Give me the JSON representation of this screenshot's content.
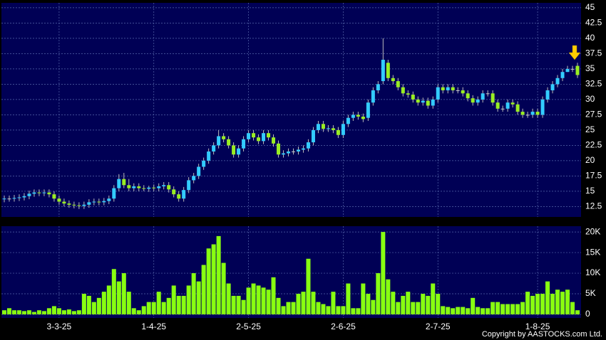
{
  "chart_data": {
    "type": "candlestick",
    "categories": [
      null,
      null,
      null,
      null,
      null,
      null,
      null,
      null,
      null,
      null,
      null,
      "3-3-25",
      null,
      null,
      null,
      null,
      null,
      null,
      null,
      null,
      null,
      null,
      null,
      null,
      null,
      null,
      null,
      null,
      null,
      null,
      "1-4-25",
      null,
      null,
      null,
      null,
      null,
      null,
      null,
      null,
      null,
      null,
      null,
      null,
      null,
      null,
      null,
      null,
      null,
      null,
      "2-5-25",
      null,
      null,
      null,
      null,
      null,
      null,
      null,
      null,
      null,
      null,
      null,
      null,
      null,
      null,
      null,
      null,
      null,
      null,
      "2-6-25",
      null,
      null,
      null,
      null,
      null,
      null,
      null,
      null,
      null,
      null,
      null,
      null,
      null,
      null,
      null,
      null,
      null,
      null,
      "2-7-25",
      null,
      null,
      null,
      null,
      null,
      null,
      null,
      null,
      null,
      null,
      null,
      null,
      null,
      null,
      null,
      null,
      null,
      null,
      null,
      "1-8-25",
      null,
      null,
      null,
      null,
      null,
      null,
      null,
      null
    ],
    "open": [
      13.7,
      13.8,
      13.8,
      13.9,
      14,
      14.2,
      14.6,
      14.8,
      14.7,
      14.8,
      14.5,
      13.8,
      13.3,
      13,
      12.8,
      12.7,
      12.6,
      12.8,
      13.2,
      13.3,
      13.2,
      13.4,
      13.8,
      15.5,
      17,
      16,
      15.5,
      15.8,
      15.5,
      15.4,
      15.6,
      15.5,
      15.8,
      16,
      15.3,
      14.5,
      13.8,
      15.2,
      16.8,
      17.5,
      19,
      20,
      21.5,
      22.5,
      24,
      23.5,
      22.5,
      21,
      22,
      23.5,
      24.5,
      23.8,
      23.2,
      24.5,
      23.8,
      22.8,
      21,
      21.2,
      21.5,
      21.5,
      21.8,
      22,
      23,
      25,
      26,
      25.2,
      25.3,
      25,
      24.2,
      26,
      27,
      27.5,
      27.2,
      27,
      29.5,
      31.5,
      33,
      36,
      33.5,
      33,
      32,
      31,
      30.8,
      30,
      29.5,
      29.8,
      29,
      30,
      32,
      31.5,
      32,
      31.5,
      31.5,
      31,
      30.2,
      29.5,
      30,
      31,
      31,
      29.5,
      28.5,
      28.5,
      29.5,
      29.2,
      28,
      27.5,
      27.5,
      28,
      27.5,
      30,
      31.5,
      32.5,
      33.5,
      34.5,
      35,
      35.5
    ],
    "high": [
      14.3,
      14.3,
      14.4,
      14.5,
      14.7,
      15.1,
      15.3,
      15.3,
      15.3,
      15.3,
      15,
      14.3,
      13.8,
      13.5,
      13.3,
      13.2,
      13.3,
      13.7,
      13.8,
      13.8,
      13.9,
      14.3,
      16,
      17.8,
      18,
      17,
      16.3,
      16.3,
      16,
      15.9,
      16.1,
      16.3,
      16.5,
      16.5,
      15.8,
      15,
      15.7,
      17.3,
      18,
      19.5,
      20.5,
      22,
      23,
      25,
      24.5,
      24,
      23,
      22.5,
      24,
      25,
      25,
      24.3,
      25,
      25,
      24.3,
      23.3,
      21.7,
      22,
      22,
      22.3,
      22.5,
      23.5,
      25.5,
      26.5,
      26.5,
      25.8,
      25.8,
      25.5,
      26.5,
      27.5,
      28,
      28,
      27.7,
      30,
      32,
      33,
      40,
      36.5,
      34,
      33.5,
      32.5,
      31.5,
      31.3,
      30.5,
      30.3,
      30.3,
      30.5,
      32.5,
      32.5,
      32.5,
      32.5,
      32,
      32,
      31.5,
      30.7,
      30.5,
      31.5,
      31.5,
      31.5,
      30,
      29,
      30,
      30,
      29.7,
      28.5,
      28,
      28.5,
      28.5,
      30.5,
      32,
      33,
      34,
      35,
      35.5,
      35.5,
      36
    ],
    "low": [
      13.2,
      13.3,
      13.3,
      13.4,
      13.5,
      13.7,
      14.1,
      14.2,
      14.2,
      14,
      13.3,
      12.8,
      12.5,
      12.3,
      12.2,
      12.1,
      12.1,
      12.3,
      12.7,
      12.7,
      12.7,
      12.9,
      13.3,
      15,
      15.5,
      15,
      15,
      15,
      15,
      14.9,
      15,
      15,
      15.3,
      14.8,
      14,
      13.3,
      13.3,
      14.7,
      16.3,
      17,
      18.5,
      19.5,
      21,
      22,
      23,
      22,
      20.5,
      20.5,
      21.5,
      23,
      23.3,
      22.7,
      22.7,
      23.3,
      22.3,
      20.5,
      20.5,
      20.7,
      21,
      21,
      21.3,
      21.5,
      22.5,
      24.5,
      24.7,
      24.7,
      24.5,
      23.7,
      23.7,
      25.5,
      26.5,
      26.7,
      26.3,
      26.5,
      29,
      31,
      32.5,
      33,
      32.5,
      31.5,
      30.5,
      30.3,
      29.5,
      29,
      29,
      28.5,
      28.5,
      29.5,
      31,
      31,
      31,
      31,
      30.5,
      29.7,
      29,
      29,
      29.5,
      30.5,
      29,
      28,
      28,
      28,
      28.7,
      27.5,
      27,
      27,
      27,
      27,
      27,
      29.5,
      31,
      32,
      33,
      34.5,
      34.5,
      33.5
    ],
    "close": [
      13.8,
      13.8,
      13.9,
      14,
      14.2,
      14.6,
      14.8,
      14.7,
      14.8,
      14.5,
      13.8,
      13.3,
      13,
      12.8,
      12.7,
      12.6,
      12.8,
      13.2,
      13.3,
      13.2,
      13.4,
      13.8,
      15.5,
      17,
      16,
      15.5,
      15.8,
      15.5,
      15.4,
      15.6,
      15.5,
      15.8,
      16,
      15.3,
      14.5,
      13.8,
      15.2,
      16.8,
      17.5,
      19,
      20,
      21.5,
      22.5,
      24,
      23.5,
      22.5,
      21,
      22,
      23.5,
      24.5,
      23.8,
      23.2,
      24.5,
      23.8,
      22.8,
      21,
      21.2,
      21.5,
      21.5,
      21.8,
      22,
      23,
      25,
      26,
      25.2,
      25.3,
      25,
      24.2,
      26,
      27,
      27.5,
      27.2,
      26.8,
      29.5,
      31.5,
      32.5,
      36.5,
      33.5,
      33,
      32,
      31,
      30.8,
      30,
      29.5,
      29.8,
      29,
      30,
      32,
      31.5,
      32,
      31.5,
      31.5,
      31,
      30.2,
      29.5,
      30,
      31,
      31,
      29.5,
      28.5,
      28.5,
      29.5,
      29.2,
      28,
      27.5,
      27.5,
      28,
      27.5,
      30,
      31.5,
      32.5,
      33.5,
      34.5,
      35,
      35,
      34
    ],
    "up_color": "#33ccff",
    "down_color": "#99ee22",
    "ylim": [
      10.8,
      45.8
    ],
    "yticks": [
      12.5,
      15,
      17.5,
      20,
      22.5,
      25,
      27.5,
      30,
      32.5,
      35,
      37.5,
      40,
      42.5,
      45
    ],
    "grid": true,
    "volume": {
      "color": "#88ff11",
      "values": [
        1,
        1.5,
        1,
        1,
        0.8,
        1,
        0.6,
        1,
        0.8,
        1.5,
        2,
        1.5,
        1,
        1.2,
        0.8,
        1,
        5,
        4.5,
        3,
        4,
        5.5,
        7,
        11,
        8,
        10,
        5.5,
        1.5,
        1,
        2,
        3,
        3,
        5.5,
        3,
        4,
        7,
        4.5,
        4.5,
        7,
        10,
        8,
        12,
        16,
        17,
        19,
        12.5,
        7.5,
        4.5,
        4.5,
        3.5,
        6.5,
        7.5,
        7,
        6.5,
        6,
        9,
        4,
        2,
        3,
        3,
        5,
        5.5,
        13.5,
        5.5,
        3,
        2.5,
        2,
        5.5,
        2,
        2,
        7.5,
        1.5,
        1.5,
        7.5,
        5,
        3.5,
        10,
        20,
        8.5,
        5.5,
        3,
        4.5,
        5.5,
        3,
        3,
        5,
        4.5,
        7.5,
        5,
        2,
        1.8,
        1.5,
        1.8,
        1.8,
        1.5,
        4,
        1.8,
        1.5,
        1.5,
        3,
        3,
        2.5,
        2.5,
        2.5,
        2.5,
        3,
        5.5,
        4.5,
        5,
        5,
        8,
        5,
        6,
        5.5,
        6,
        3,
        1
      ],
      "ylim": [
        0,
        21.4
      ],
      "yticks": [
        0,
        {
          "value": 5,
          "label": "5K"
        },
        {
          "value": 10,
          "label": "10K"
        },
        {
          "value": 15,
          "label": "15K"
        },
        {
          "value": 20,
          "label": "20K"
        }
      ]
    },
    "copyright": "Copyright by AASTOCKS.com Ltd."
  }
}
